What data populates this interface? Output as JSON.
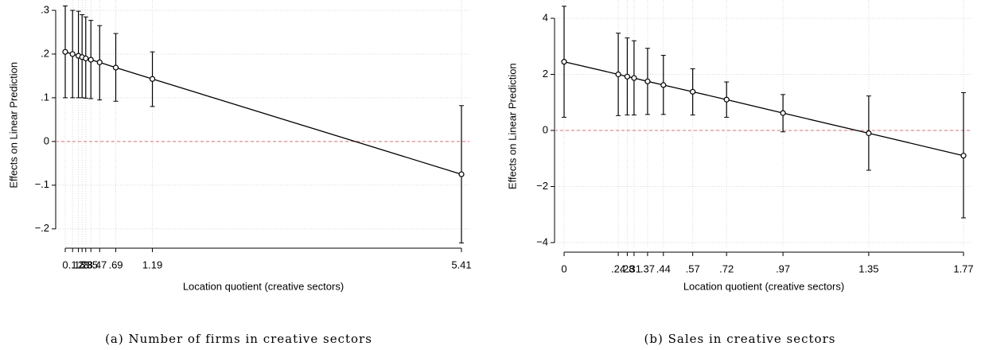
{
  "chart_data": [
    {
      "type": "errorbar",
      "caption": "(a)  Number of firms in creative sectors",
      "x_label": "Location quotient (creative sectors)",
      "y_label": "Effects on Linear Prediction",
      "x": [
        0,
        0.1,
        0.18,
        0.23,
        0.28,
        0.35,
        0.47,
        0.69,
        1.19,
        5.41
      ],
      "values": [
        0.205,
        0.2,
        0.196,
        0.193,
        0.19,
        0.187,
        0.181,
        0.169,
        0.143,
        -0.075
      ],
      "ci_low": [
        0.1,
        0.1,
        0.1,
        0.1,
        0.099,
        0.098,
        0.095,
        0.092,
        0.08,
        -0.232
      ],
      "ci_high": [
        0.31,
        0.3,
        0.298,
        0.29,
        0.285,
        0.277,
        0.265,
        0.247,
        0.205,
        0.082
      ],
      "color": "#000000",
      "refline": 0,
      "refline_color": "#d9737a",
      "xlim": [
        0,
        5.41
      ],
      "ylim": [
        -0.235,
        0.31
      ],
      "xticks": [
        0,
        {
          "value": 0.1,
          "label": ".1"
        },
        {
          "value": 0.18,
          "label": ".18"
        },
        {
          "value": 0.23,
          "label": ".23"
        },
        {
          "value": 0.28,
          "label": ".28"
        },
        {
          "value": 0.35,
          "label": ".35"
        },
        {
          "value": 0.47,
          "label": ".47"
        },
        {
          "value": 0.69,
          "label": ".69"
        },
        1.19,
        5.41
      ],
      "yticks": [
        {
          "value": -0.2,
          "label": "−.2"
        },
        {
          "value": -0.1,
          "label": "−.1"
        },
        0,
        {
          "value": 0.1,
          "label": ".1"
        },
        {
          "value": 0.2,
          "label": ".2"
        },
        {
          "value": 0.3,
          "label": ".3"
        }
      ],
      "grid": true
    },
    {
      "type": "errorbar",
      "caption": "(b) Sales in creative sectors",
      "x_label": "Location quotient (creative sectors)",
      "y_label": "Effects on Linear Prediction",
      "x": [
        0,
        0.24,
        0.28,
        0.31,
        0.37,
        0.44,
        0.57,
        0.72,
        0.97,
        1.35,
        1.77
      ],
      "values": [
        2.45,
        2.0,
        1.92,
        1.87,
        1.75,
        1.62,
        1.38,
        1.1,
        0.62,
        -0.1,
        -0.9
      ],
      "ci_low": [
        0.47,
        0.53,
        0.55,
        0.55,
        0.57,
        0.57,
        0.55,
        0.47,
        -0.05,
        -1.42,
        -3.12
      ],
      "ci_high": [
        4.43,
        3.47,
        3.3,
        3.2,
        2.93,
        2.68,
        2.2,
        1.73,
        1.28,
        1.23,
        1.35
      ],
      "color": "#000000",
      "refline": 0,
      "refline_color": "#d9737a",
      "xlim": [
        0,
        1.77
      ],
      "ylim": [
        -4.2,
        4.5
      ],
      "xticks": [
        0,
        {
          "value": 0.24,
          "label": ".24"
        },
        {
          "value": 0.28,
          "label": ".28"
        },
        {
          "value": 0.31,
          "label": ".31"
        },
        {
          "value": 0.37,
          "label": ".37"
        },
        {
          "value": 0.44,
          "label": ".44"
        },
        {
          "value": 0.57,
          "label": ".57"
        },
        {
          "value": 0.72,
          "label": ".72"
        },
        {
          "value": 0.97,
          "label": ".97"
        },
        1.35,
        1.77
      ],
      "yticks": [
        {
          "value": -4,
          "label": "−4"
        },
        {
          "value": -2,
          "label": "−2"
        },
        0,
        2,
        4
      ],
      "grid": true
    }
  ]
}
